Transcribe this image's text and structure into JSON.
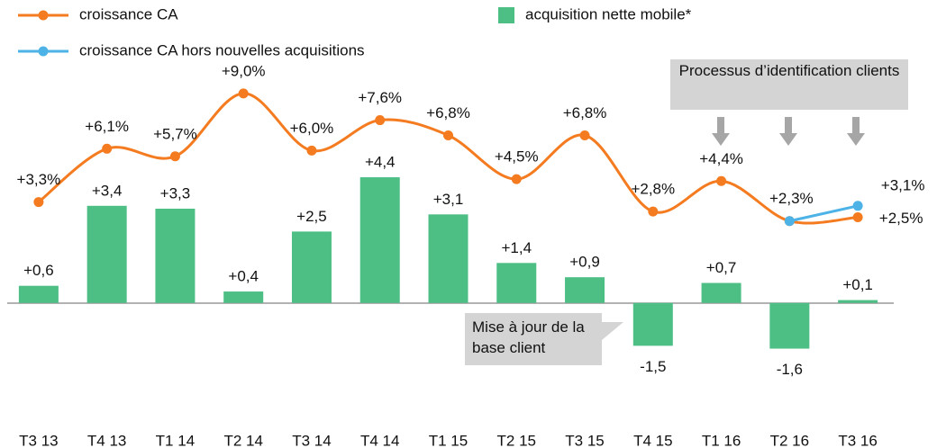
{
  "chart_data": {
    "type": "bar",
    "categories": [
      "T3 13",
      "T4 13",
      "T1 14",
      "T2 14",
      "T3 14",
      "T4 14",
      "T1 15",
      "T2 15",
      "T3 15",
      "T4 15",
      "T1 16",
      "T2 16",
      "T3 16"
    ],
    "ylim": [
      -3,
      9
    ],
    "y2lim": [
      -6.5,
      11.5
    ],
    "series": [
      {
        "name": "acquisition nette mobile*",
        "type": "bar",
        "color": "#4dbf85",
        "values": [
          0.6,
          3.4,
          3.3,
          0.4,
          2.5,
          4.4,
          3.1,
          1.4,
          0.9,
          -1.5,
          0.7,
          -1.6,
          0.1
        ],
        "value_labels": [
          "+0,6",
          "+3,4",
          "+3,3",
          "+0,4",
          "+2,5",
          "+4,4",
          "+3,1",
          "+1,4",
          "+0,9",
          "-1,5",
          "+0,7",
          "-1,6",
          "+0,1"
        ]
      },
      {
        "name": "croissance CA",
        "type": "line",
        "axis": "y2",
        "color": "#f47b20",
        "values": [
          3.3,
          6.1,
          5.7,
          9.0,
          6.0,
          7.6,
          6.8,
          4.5,
          6.8,
          2.8,
          4.4,
          2.3,
          2.5
        ],
        "value_labels": [
          "+3,3%",
          "+6,1%",
          "+5,7%",
          "+9,0%",
          "+6,0%",
          "+7,6%",
          "+6,8%",
          "+4,5%",
          "+6,8%",
          "+2,8%",
          "+4,4%",
          "+2,3%",
          "+2,5%"
        ]
      },
      {
        "name": "croissance CA hors nouvelles acquisitions",
        "type": "line",
        "axis": "y2",
        "color": "#4db3e6",
        "values": [
          null,
          null,
          null,
          null,
          null,
          null,
          null,
          null,
          null,
          null,
          null,
          2.3,
          3.1
        ],
        "value_labels": [
          null,
          null,
          null,
          null,
          null,
          null,
          null,
          null,
          null,
          null,
          null,
          null,
          "+3,1%"
        ]
      }
    ],
    "annotations": [
      "Processus d’identification clients",
      "Mise à jour de la base client"
    ]
  }
}
